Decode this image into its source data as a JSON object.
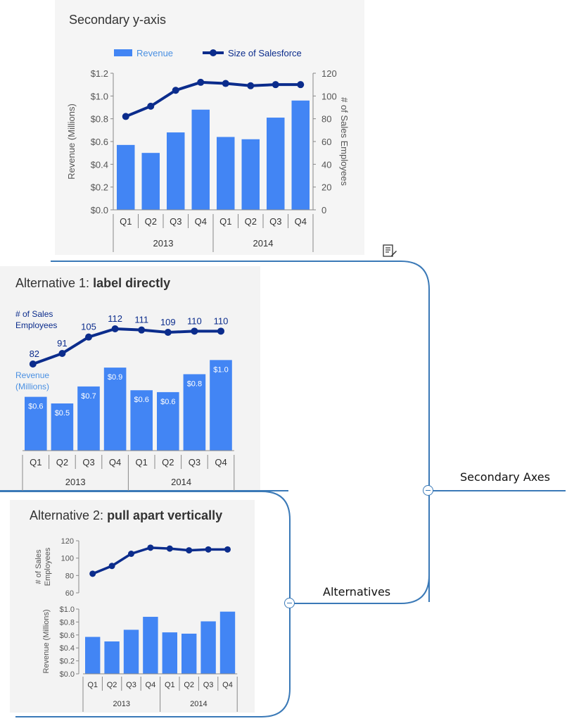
{
  "mindmap": {
    "root_label": "Secondary Axes",
    "branch_label": "Alternatives"
  },
  "colors": {
    "line": "#0b2c8c",
    "bar": "#4285f4",
    "bar_label": "#4a90e2",
    "connector": "#3a79b7"
  },
  "icons": {
    "note": "note-edit-icon",
    "collapse": "minus-circle-icon"
  },
  "panel_main": {
    "title": "Secondary y-axis",
    "legend_revenue": "Revenue",
    "legend_salesforce": "Size of Salesforce",
    "ylabel_left": "Revenue (Millions)",
    "ylabel_right": "# of Sales Employees"
  },
  "panel_alt1": {
    "title_prefix": "Alternative 1: ",
    "title_bold": "label directly",
    "label_employees_1": "# of Sales",
    "label_employees_2": "Employees",
    "label_revenue_1": "Revenue",
    "label_revenue_2": "(Millions)"
  },
  "panel_alt2": {
    "title_prefix": "Alternative 2: ",
    "title_bold": "pull apart vertically",
    "ylabel_top_1": "# of Sales",
    "ylabel_top_2": "Employees",
    "ylabel_bottom": "Revenue (Millions)"
  },
  "chart_data": {
    "type": "bar",
    "categories": [
      "Q1",
      "Q2",
      "Q3",
      "Q4",
      "Q1",
      "Q2",
      "Q3",
      "Q4"
    ],
    "groups": [
      "2013",
      "2014"
    ],
    "series": [
      {
        "name": "Revenue",
        "type": "bar",
        "axis": "left",
        "values": [
          0.57,
          0.5,
          0.68,
          0.88,
          0.64,
          0.62,
          0.81,
          0.96
        ],
        "labels": [
          "$0.6",
          "$0.5",
          "$0.7",
          "$0.9",
          "$0.6",
          "$0.6",
          "$0.8",
          "$1.0"
        ]
      },
      {
        "name": "Size of Salesforce",
        "type": "line",
        "axis": "right",
        "values": [
          82,
          91,
          105,
          112,
          111,
          109,
          110,
          110
        ]
      }
    ],
    "y_left": {
      "min": 0,
      "max": 1.2,
      "ticks": [
        "$0.0",
        "$0.2",
        "$0.4",
        "$0.6",
        "$0.8",
        "$1.0",
        "$1.2"
      ]
    },
    "y_right": {
      "min": 0,
      "max": 120,
      "ticks": [
        "0",
        "20",
        "40",
        "60",
        "80",
        "100",
        "120"
      ]
    },
    "alt2_top": {
      "min": 60,
      "max": 120,
      "ticks": [
        "60",
        "80",
        "100",
        "120"
      ]
    },
    "alt2_bottom": {
      "min": 0,
      "max": 1.0,
      "ticks": [
        "$0.0",
        "$0.2",
        "$0.4",
        "$0.6",
        "$0.8",
        "$1.0"
      ]
    }
  }
}
